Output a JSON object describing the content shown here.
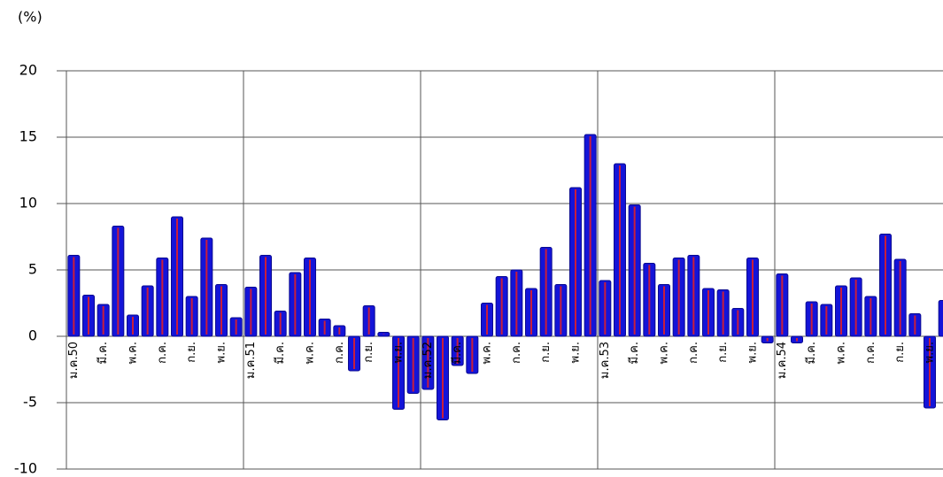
{
  "chart_data": {
    "type": "bar",
    "unit_label": "(%)",
    "categories": [
      "ม.ค.50",
      null,
      "มี.ค.",
      null,
      "พ.ค.",
      null,
      "ก.ค.",
      null,
      "ก.ย.",
      null,
      "พ.ย.",
      null,
      "ม.ค.51",
      null,
      "มี.ค.",
      null,
      "พ.ค.",
      null,
      "ก.ค.",
      null,
      "ก.ย.",
      null,
      "พ.ย.",
      null,
      "ม.ค.52",
      null,
      "มี.ค.",
      null,
      "พ.ค.",
      null,
      "ก.ค.",
      null,
      "ก.ย.",
      null,
      "พ.ย.",
      null,
      "ม.ค.53",
      null,
      "มี.ค.",
      null,
      "พ.ค.",
      null,
      "ก.ค.",
      null,
      "ก.ย.",
      null,
      "พ.ย.",
      null,
      "ม.ค.54",
      null,
      "มี.ค.",
      null,
      "พ.ค.",
      null,
      "ก.ค.",
      null,
      "ก.ย.",
      null,
      "พ.ย.",
      null
    ],
    "values": [
      6.1,
      3.1,
      2.4,
      8.3,
      1.6,
      3.8,
      5.9,
      9.0,
      3.0,
      7.4,
      3.9,
      1.4,
      3.7,
      6.1,
      1.9,
      4.8,
      5.9,
      1.3,
      0.8,
      -2.6,
      2.3,
      0.3,
      -5.5,
      -4.3,
      -4.0,
      -6.3,
      -2.2,
      -2.8,
      2.5,
      4.5,
      5.0,
      3.6,
      6.7,
      3.9,
      11.2,
      15.2,
      4.2,
      13.0,
      9.9,
      5.5,
      3.9,
      5.9,
      6.1,
      3.6,
      3.5,
      2.1,
      5.9,
      -0.5,
      4.7,
      -0.5,
      2.6,
      2.4,
      3.8,
      4.4,
      3.0,
      7.7,
      5.8,
      1.7,
      -5.4,
      2.7
    ],
    "color": "#1414d8",
    "accent_color": "#c81e3c",
    "ylim": [
      -10,
      20
    ],
    "yticks": [
      -10,
      -5,
      0,
      5,
      10,
      15,
      20
    ],
    "grid": true
  }
}
